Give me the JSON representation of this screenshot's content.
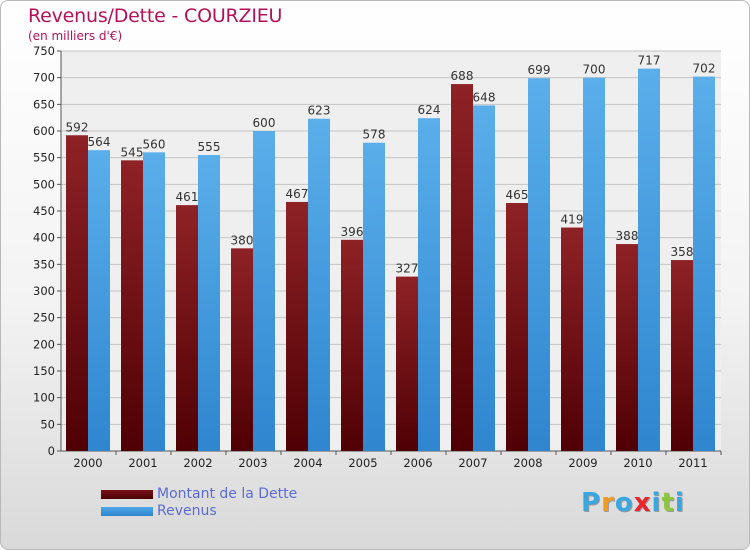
{
  "header": {
    "title": "Revenus/Dette - COURZIEU",
    "subtitle": "(en milliers d'€)"
  },
  "chart_data": {
    "type": "bar",
    "categories": [
      "2000",
      "2001",
      "2002",
      "2003",
      "2004",
      "2005",
      "2006",
      "2007",
      "2008",
      "2009",
      "2010",
      "2011"
    ],
    "series": [
      {
        "name": "Montant de la Dette",
        "values": [
          592,
          545,
          461,
          380,
          467,
          396,
          327,
          688,
          465,
          419,
          388,
          358
        ],
        "color": "#7a1418"
      },
      {
        "name": "Revenus",
        "values": [
          564,
          560,
          555,
          600,
          623,
          578,
          624,
          648,
          699,
          700,
          717,
          702
        ],
        "color": "#4ea5e6"
      }
    ],
    "ylim": [
      0,
      750
    ],
    "yticks": [
      0,
      50,
      100,
      150,
      200,
      250,
      300,
      350,
      400,
      450,
      500,
      550,
      600,
      650,
      700,
      750
    ],
    "grid": true,
    "legend_position": "bottom-left"
  },
  "branding": {
    "logo_letters": [
      "P",
      "r",
      "o",
      "x",
      "i",
      "t",
      "i"
    ],
    "logo_colors": [
      "#3aa7e0",
      "#f29a1f",
      "#3aa7e0",
      "#e8262f",
      "#3aa7e0",
      "#8ec63f",
      "#3aa7e0"
    ]
  }
}
